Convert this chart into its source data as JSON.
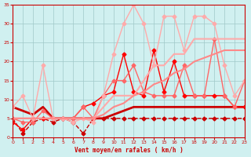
{
  "title": "",
  "xlabel": "Vent moyen/en rafales ( km/h )",
  "ylabel": "",
  "bg_color": "#d0f0f0",
  "grid_color": "#a0c8c8",
  "x": [
    0,
    1,
    2,
    3,
    4,
    5,
    6,
    7,
    8,
    9,
    10,
    11,
    12,
    13,
    14,
    15,
    16,
    17,
    18,
    19,
    20,
    21,
    22,
    23
  ],
  "xlim": [
    0,
    23
  ],
  "ylim": [
    0,
    35
  ],
  "yticks": [
    0,
    5,
    10,
    15,
    20,
    25,
    30,
    35
  ],
  "xticks": [
    0,
    1,
    2,
    3,
    4,
    5,
    6,
    7,
    8,
    9,
    10,
    11,
    12,
    13,
    14,
    15,
    16,
    17,
    18,
    19,
    20,
    21,
    22,
    23
  ],
  "series": [
    {
      "y": [
        8,
        7,
        6,
        8,
        5,
        5,
        5,
        5,
        5,
        5,
        6,
        7,
        8,
        8,
        8,
        8,
        8,
        8,
        8,
        8,
        8,
        8,
        8,
        8
      ],
      "color": "#cc0000",
      "linewidth": 2.0,
      "marker": null,
      "linestyle": "-"
    },
    {
      "y": [
        5,
        1,
        4,
        5,
        4,
        5,
        4,
        1,
        5,
        5,
        5,
        5,
        5,
        5,
        5,
        5,
        5,
        5,
        5,
        5,
        5,
        5,
        5,
        5
      ],
      "color": "#cc0000",
      "linewidth": 1.0,
      "marker": "D",
      "markersize": 2.5,
      "linestyle": "--"
    },
    {
      "y": [
        4,
        2,
        5,
        5,
        5,
        5,
        5,
        8,
        9,
        11,
        12,
        22,
        12,
        11,
        23,
        12,
        20,
        11,
        11,
        11,
        11,
        11,
        8,
        8
      ],
      "color": "#ff0000",
      "linewidth": 1.0,
      "marker": "D",
      "markersize": 2.5,
      "linestyle": "-"
    },
    {
      "y": [
        5,
        4,
        4,
        7,
        5,
        5,
        5,
        8,
        5,
        11,
        15,
        15,
        19,
        12,
        11,
        11,
        11,
        19,
        11,
        11,
        26,
        11,
        8,
        15
      ],
      "color": "#ff6666",
      "linewidth": 1.0,
      "marker": "D",
      "markersize": 2.5,
      "linestyle": "-"
    },
    {
      "y": [
        8,
        11,
        5,
        19,
        5,
        5,
        4,
        5,
        4,
        11,
        22,
        30,
        35,
        30,
        19,
        32,
        32,
        23,
        32,
        32,
        30,
        19,
        11,
        15
      ],
      "color": "#ffaaaa",
      "linewidth": 1.0,
      "marker": "D",
      "markersize": 2.5,
      "linestyle": "-"
    },
    {
      "y": [
        5,
        5,
        5,
        5,
        5,
        5,
        5,
        5,
        5,
        8,
        11,
        11,
        11,
        15,
        19,
        19,
        22,
        22,
        26,
        26,
        26,
        26,
        26,
        26
      ],
      "color": "#ffaaaa",
      "linewidth": 1.5,
      "marker": null,
      "linestyle": "-"
    },
    {
      "y": [
        5,
        5,
        5,
        5,
        5,
        5,
        5,
        5,
        5,
        6,
        8,
        9,
        11,
        12,
        14,
        15,
        17,
        18,
        20,
        21,
        22,
        23,
        23,
        23
      ],
      "color": "#ff8888",
      "linewidth": 1.5,
      "marker": null,
      "linestyle": "-"
    }
  ]
}
